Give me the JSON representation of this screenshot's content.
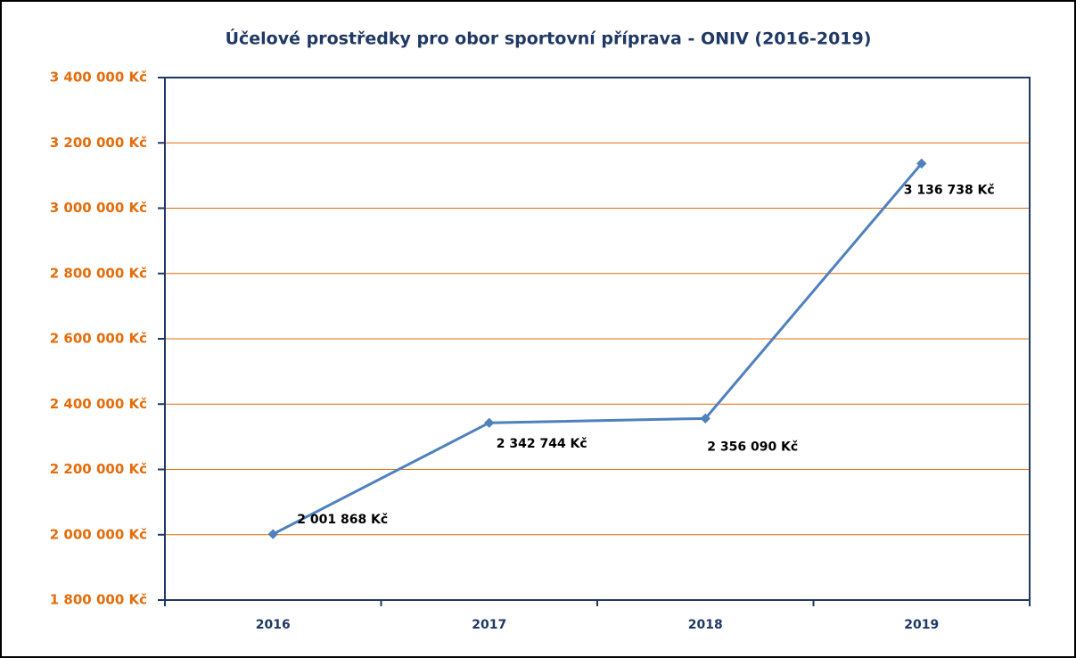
{
  "chart_data": {
    "type": "line",
    "title": "Účelové prostředky pro obor sportovní příprava - ONIV  (2016-2019)",
    "categories": [
      "2016",
      "2017",
      "2018",
      "2019"
    ],
    "series": [
      {
        "name": "Účelové prostředky",
        "color": "#4f81bd",
        "values": [
          2001868,
          2342744,
          2356090,
          3136738
        ],
        "value_labels": [
          "2 001 868 Kč",
          "2 342 744 Kč",
          "2 356 090 Kč",
          "3 136 738 Kč"
        ]
      }
    ],
    "ylim": [
      1800000,
      3400000
    ],
    "yticks": [
      {
        "value": 1800000,
        "label": "1 800 000 Kč"
      },
      {
        "value": 2000000,
        "label": "2 000 000 Kč"
      },
      {
        "value": 2200000,
        "label": "2 200 000 Kč"
      },
      {
        "value": 2400000,
        "label": "2 400 000 Kč"
      },
      {
        "value": 2600000,
        "label": "2 600 000 Kč"
      },
      {
        "value": 2800000,
        "label": "2 800 000 Kč"
      },
      {
        "value": 3000000,
        "label": "3 000 000 Kč"
      },
      {
        "value": 3200000,
        "label": "3 200 000 Kč"
      },
      {
        "value": 3400000,
        "label": "3 400 000 Kč"
      }
    ],
    "grid": true,
    "grid_color": "#e46c0a"
  }
}
